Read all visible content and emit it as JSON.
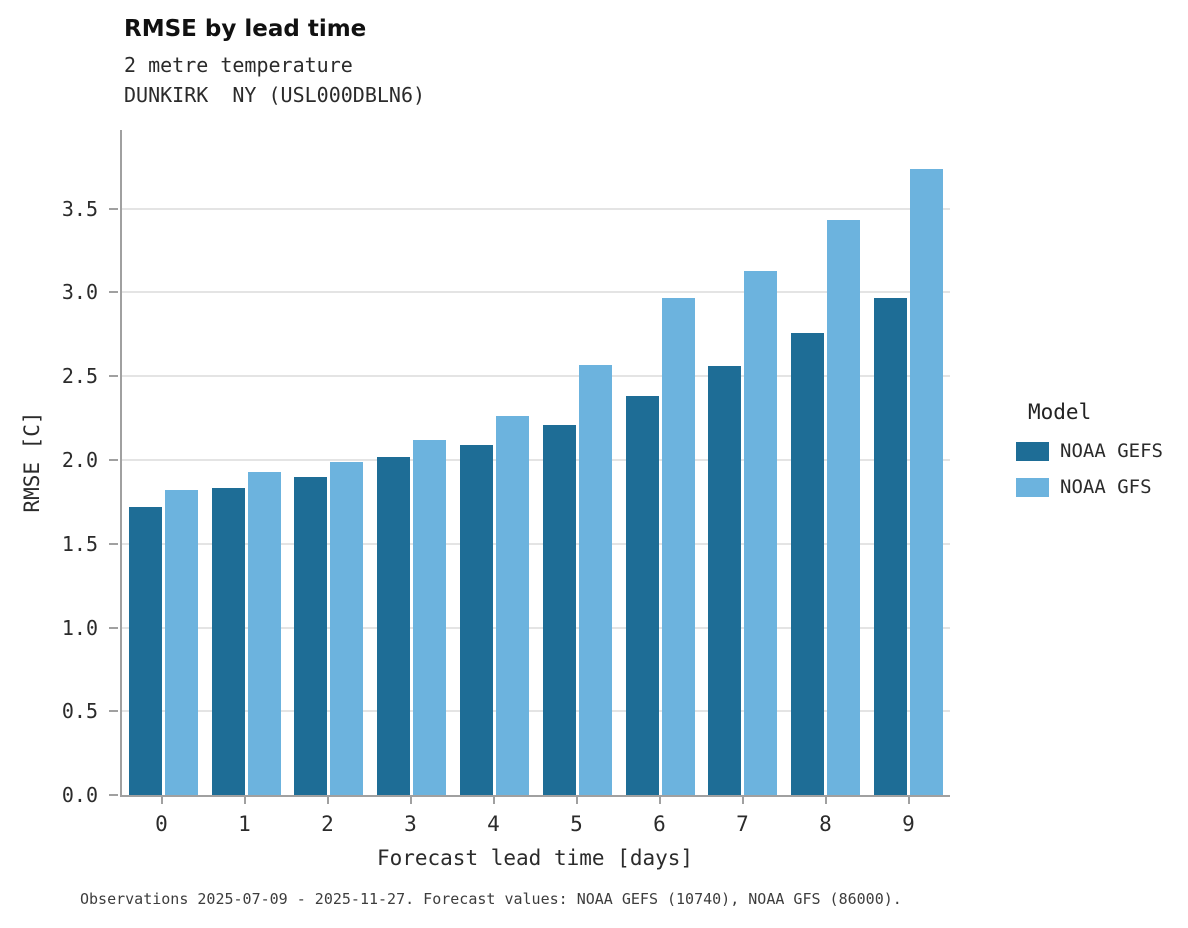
{
  "header": {
    "title": "RMSE by lead time"
  },
  "chart_data": {
    "type": "bar",
    "title": "RMSE by lead time",
    "subtitle_lines": [
      "2 metre temperature",
      "DUNKIRK  NY (USL000DBLN6)"
    ],
    "categories": [
      "0",
      "1",
      "2",
      "3",
      "4",
      "5",
      "6",
      "7",
      "8",
      "9"
    ],
    "series": [
      {
        "name": "NOAA GEFS",
        "color": "#1e6d96",
        "values": [
          1.72,
          1.83,
          1.9,
          2.02,
          2.09,
          2.21,
          2.38,
          2.56,
          2.76,
          2.97
        ]
      },
      {
        "name": "NOAA GFS",
        "color": "#6cb3de",
        "values": [
          1.82,
          1.93,
          1.99,
          2.12,
          2.26,
          2.57,
          2.97,
          3.13,
          3.43,
          3.74
        ]
      }
    ],
    "xlabel": "Forecast lead time [days]",
    "ylabel": "RMSE [C]",
    "ylim": [
      0,
      3.97
    ],
    "yticks": [
      0.0,
      0.5,
      1.0,
      1.5,
      2.0,
      2.5,
      3.0,
      3.5
    ],
    "legend_title": "Model",
    "legend_position": "right",
    "grid": true
  },
  "footer": {
    "caption": "Observations 2025-07-09 - 2025-11-27. Forecast values: NOAA GEFS (10740), NOAA GFS (86000)."
  }
}
